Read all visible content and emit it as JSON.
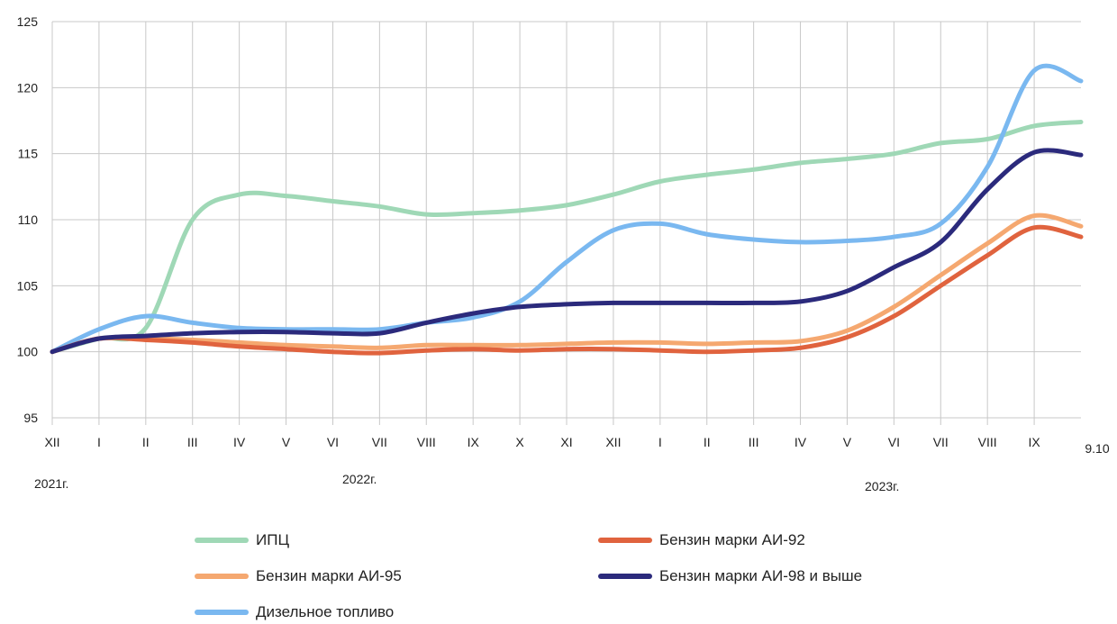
{
  "chart_data": {
    "type": "line",
    "title": "",
    "xlabel": "",
    "ylabel": "",
    "ylim": [
      95,
      125
    ],
    "yticks": [
      "95",
      "100",
      "105",
      "110",
      "115",
      "120",
      "125"
    ],
    "categories": [
      "XII",
      "I",
      "II",
      "III",
      "IV",
      "V",
      "VI",
      "VII",
      "VIII",
      "IX",
      "X",
      "XI",
      "XII",
      "I",
      "II",
      "III",
      "IV",
      "V",
      "VI",
      "VII",
      "VIII",
      "IX",
      "9.10"
    ],
    "year_labels": [
      "2021г.",
      "2022г.",
      "2023г."
    ],
    "grid": "vertical and horizontal",
    "legend_placement": "bottom",
    "series": [
      {
        "name": "ИПЦ",
        "color": "#9fd8b6",
        "values": [
          100.0,
          101.0,
          101.8,
          110.0,
          111.9,
          111.8,
          111.4,
          111.0,
          110.4,
          110.5,
          110.7,
          111.1,
          111.9,
          112.9,
          113.4,
          113.8,
          114.3,
          114.6,
          115.0,
          115.8,
          116.1,
          117.1,
          117.4
        ]
      },
      {
        "name": "Бензин марки АИ-92",
        "color": "#e0633e",
        "values": [
          100.0,
          101.0,
          100.9,
          100.7,
          100.4,
          100.2,
          100.0,
          99.9,
          100.1,
          100.2,
          100.1,
          100.2,
          100.2,
          100.1,
          100.0,
          100.1,
          100.3,
          101.1,
          102.7,
          105.0,
          107.3,
          109.4,
          108.7
        ]
      },
      {
        "name": "Бензин марки АИ-95",
        "color": "#f5a870",
        "values": [
          100.0,
          101.0,
          101.0,
          100.9,
          100.7,
          100.5,
          100.4,
          100.3,
          100.5,
          100.5,
          100.5,
          100.6,
          100.7,
          100.7,
          100.6,
          100.7,
          100.8,
          101.6,
          103.4,
          105.8,
          108.2,
          110.3,
          109.5
        ]
      },
      {
        "name": "Бензин марки АИ-98 и выше",
        "color": "#2b2a7c",
        "values": [
          100.0,
          101.0,
          101.2,
          101.4,
          101.5,
          101.5,
          101.4,
          101.4,
          102.2,
          102.9,
          103.4,
          103.6,
          103.7,
          103.7,
          103.7,
          103.7,
          103.8,
          104.6,
          106.4,
          108.3,
          112.3,
          115.1,
          114.9
        ]
      },
      {
        "name": "Дизельное топливо",
        "color": "#7ab8f0",
        "values": [
          100.0,
          101.7,
          102.7,
          102.2,
          101.8,
          101.7,
          101.7,
          101.7,
          102.2,
          102.6,
          103.8,
          106.8,
          109.2,
          109.7,
          108.9,
          108.5,
          108.3,
          108.4,
          108.7,
          109.7,
          114.0,
          121.3,
          120.5
        ]
      }
    ]
  }
}
